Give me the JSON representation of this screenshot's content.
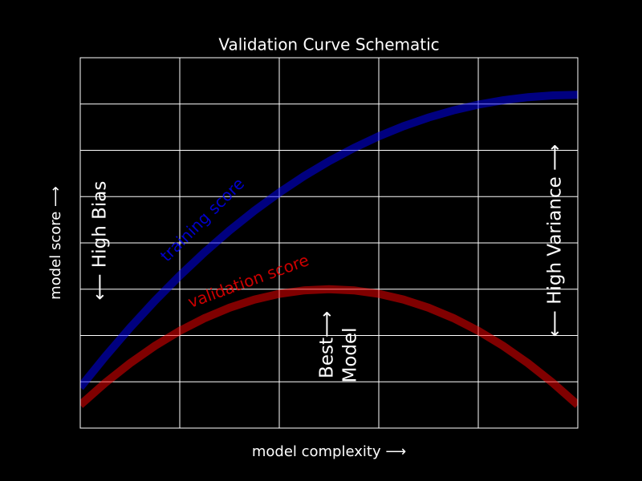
{
  "chart_data": {
    "type": "line",
    "title": "Validation Curve Schematic",
    "x_label": "model complexity ⟶",
    "y_label": "model score ⟶",
    "x": [
      0,
      0.05,
      0.1,
      0.15,
      0.2,
      0.25,
      0.3,
      0.35,
      0.4,
      0.45,
      0.5,
      0.55,
      0.6,
      0.65,
      0.7,
      0.75,
      0.8,
      0.85,
      0.9,
      0.95,
      1
    ],
    "series": [
      {
        "name": "training score",
        "color": "#0000ff",
        "values": [
          -0.2121,
          -0.1458,
          -0.0834,
          -0.0251,
          0.0293,
          0.0799,
          0.1266,
          0.1695,
          0.2088,
          0.2444,
          0.2765,
          0.3051,
          0.3303,
          0.3522,
          0.3708,
          0.3863,
          0.3987,
          0.4082,
          0.4148,
          0.4187,
          0.42
        ]
      },
      {
        "name": "validation score",
        "color": "#ff0000",
        "values": [
          -0.25,
          -0.2025,
          -0.16,
          -0.1225,
          -0.09,
          -0.0625,
          -0.04,
          -0.0225,
          -0.01,
          -0.0025,
          0,
          -0.0025,
          -0.01,
          -0.0225,
          -0.04,
          -0.0625,
          -0.09,
          -0.1225,
          -0.16,
          -0.2025,
          -0.25
        ]
      }
    ],
    "annotations": [
      "⟵ High Bias",
      "⟵ High Variance ⟶",
      "Best⟶",
      "Model"
    ],
    "xlim": [
      0,
      1
    ],
    "ylim": [
      -0.3,
      0.5
    ],
    "xticks": [
      0,
      0.2,
      0.4,
      0.6,
      0.8,
      1
    ],
    "yticks": [
      -0.3,
      -0.2,
      -0.1,
      0,
      0.1,
      0.2,
      0.3,
      0.4,
      0.5
    ],
    "grid": true
  }
}
